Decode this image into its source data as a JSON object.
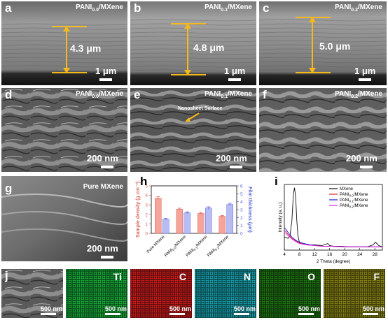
{
  "panels": {
    "a": {
      "label": "a",
      "title": "PANI",
      "title_sub": "0.0",
      "title_tail": "/MXene",
      "thickness": "4.3 μm",
      "scale": "1 μm"
    },
    "b": {
      "label": "b",
      "title": "PANI",
      "title_sub": "0.1",
      "title_tail": "/MXene",
      "thickness": "4.8 μm",
      "scale": "1 μm"
    },
    "c": {
      "label": "c",
      "title": "PANI",
      "title_sub": "0.2",
      "title_tail": "/MXene",
      "thickness": "5.0 μm",
      "scale": "1 μm"
    },
    "d": {
      "label": "d",
      "title": "PANI",
      "title_sub": "0.0",
      "title_tail": "/MXene",
      "scale": "200 nm"
    },
    "e": {
      "label": "e",
      "title": "PANI",
      "title_sub": "0.1",
      "title_tail": "/MXene",
      "annotation": "Nanosheet Surface",
      "scale": "200 nm"
    },
    "f": {
      "label": "f",
      "title": "PANI",
      "title_sub": "0.2",
      "title_tail": "/MXene",
      "scale": "200 nm"
    },
    "g": {
      "label": "g",
      "title": "Pure MXene",
      "scale": "200 nm"
    },
    "h": {
      "label": "h"
    },
    "i": {
      "label": "i"
    },
    "j": {
      "label": "j",
      "scale": "500 nm"
    }
  },
  "eds": [
    {
      "element": "Ti",
      "color": "#16b23a",
      "scale": "500 nm"
    },
    {
      "element": "C",
      "color": "#d81c1c",
      "scale": "500 nm"
    },
    {
      "element": "N",
      "color": "#16a7b3",
      "scale": "500 nm"
    },
    {
      "element": "O",
      "color": "#1e7a12",
      "scale": "500 nm"
    },
    {
      "element": "F",
      "color": "#8f8a14",
      "scale": "500 nm"
    }
  ],
  "chart_data": [
    {
      "type": "bar",
      "panel": "h",
      "categories": [
        "Pure MXene",
        "PANI0.0/MXene",
        "PANI0.1/MXene",
        "PANI0.2/MXene"
      ],
      "category_parts": [
        {
          "main": "Pure MXene",
          "sub": "",
          "tail": ""
        },
        {
          "main": "PANI",
          "sub": "0.0",
          "tail": "/MXene"
        },
        {
          "main": "PANI",
          "sub": "0.1",
          "tail": "/MXene"
        },
        {
          "main": "PANI",
          "sub": "0.2",
          "tail": "/MXene"
        }
      ],
      "series": [
        {
          "name": "Sample density",
          "axis": "left",
          "color": "#f4a49a",
          "edge": "#d9655b",
          "values": [
            3.7,
            2.55,
            2.1,
            1.8
          ],
          "errors": [
            0.15,
            0.1,
            0.1,
            0.08
          ]
        },
        {
          "name": "Film thickness",
          "axis": "right",
          "color": "#b7bdf3",
          "edge": "#5b66d9",
          "values": [
            1.8,
            2.6,
            3.2,
            3.65
          ],
          "errors": [
            0.08,
            0.12,
            0.15,
            0.15
          ]
        }
      ],
      "ylabel_left": "Sample density (g cm⁻³)",
      "ylabel_right": "Film thickness (μm)",
      "ylim_left": [
        0,
        5
      ],
      "ylim_right": [
        0,
        6
      ],
      "yticks_left": [
        0,
        1,
        2,
        3,
        4,
        5
      ],
      "yticks_right": [
        0,
        1,
        2,
        3,
        4,
        5,
        6
      ]
    },
    {
      "type": "line",
      "panel": "i",
      "xlabel": "2 Theta (degree)",
      "ylabel": "Intensity (a. u.)",
      "xlim": [
        4,
        30
      ],
      "xticks": [
        4,
        8,
        12,
        16,
        20,
        24,
        28
      ],
      "series": [
        {
          "name": "MXene",
          "legend_main": "MXene",
          "legend_sub": "",
          "legend_tail": "",
          "color": "#111111",
          "x": [
            4,
            5,
            5.5,
            6,
            6.4,
            6.7,
            7,
            7.3,
            7.6,
            8,
            9,
            10,
            12,
            14,
            15.5,
            16,
            17,
            19,
            21,
            24,
            26,
            27.5,
            28.2,
            29,
            30
          ],
          "y": [
            0.2,
            0.18,
            0.22,
            0.45,
            0.85,
            0.95,
            0.8,
            0.45,
            0.22,
            0.12,
            0.09,
            0.08,
            0.08,
            0.07,
            0.1,
            0.07,
            0.06,
            0.06,
            0.05,
            0.05,
            0.05,
            0.08,
            0.12,
            0.07,
            0.05
          ]
        },
        {
          "name": "PANI0.0/MXene",
          "legend_main": "PANI",
          "legend_sub": "0.0",
          "legend_tail": "/MXene",
          "color": "#e0202a",
          "x": [
            4,
            4.5,
            5,
            6,
            7,
            8,
            10,
            12,
            14,
            16,
            20,
            24,
            28,
            30
          ],
          "y": [
            0.3,
            0.28,
            0.24,
            0.18,
            0.14,
            0.11,
            0.08,
            0.07,
            0.06,
            0.06,
            0.05,
            0.05,
            0.05,
            0.05
          ]
        },
        {
          "name": "PANI0.1/MXene",
          "legend_main": "PANI",
          "legend_sub": "0.1",
          "legend_tail": "/MXene",
          "color": "#1a1ae0",
          "x": [
            4,
            4.5,
            5,
            6,
            7,
            8,
            10,
            12,
            14,
            16,
            20,
            24,
            28,
            30
          ],
          "y": [
            0.34,
            0.31,
            0.27,
            0.2,
            0.15,
            0.12,
            0.09,
            0.07,
            0.06,
            0.06,
            0.05,
            0.05,
            0.05,
            0.05
          ]
        },
        {
          "name": "PANI0.2/MXene",
          "legend_main": "PANI",
          "legend_sub": "0.2",
          "legend_tail": "/MXene",
          "color": "#e020e0",
          "x": [
            4,
            4.5,
            5,
            6,
            7,
            8,
            10,
            12,
            14,
            16,
            20,
            24,
            28,
            30
          ],
          "y": [
            0.27,
            0.25,
            0.22,
            0.17,
            0.13,
            0.1,
            0.08,
            0.07,
            0.06,
            0.06,
            0.05,
            0.05,
            0.05,
            0.05
          ]
        }
      ]
    }
  ]
}
